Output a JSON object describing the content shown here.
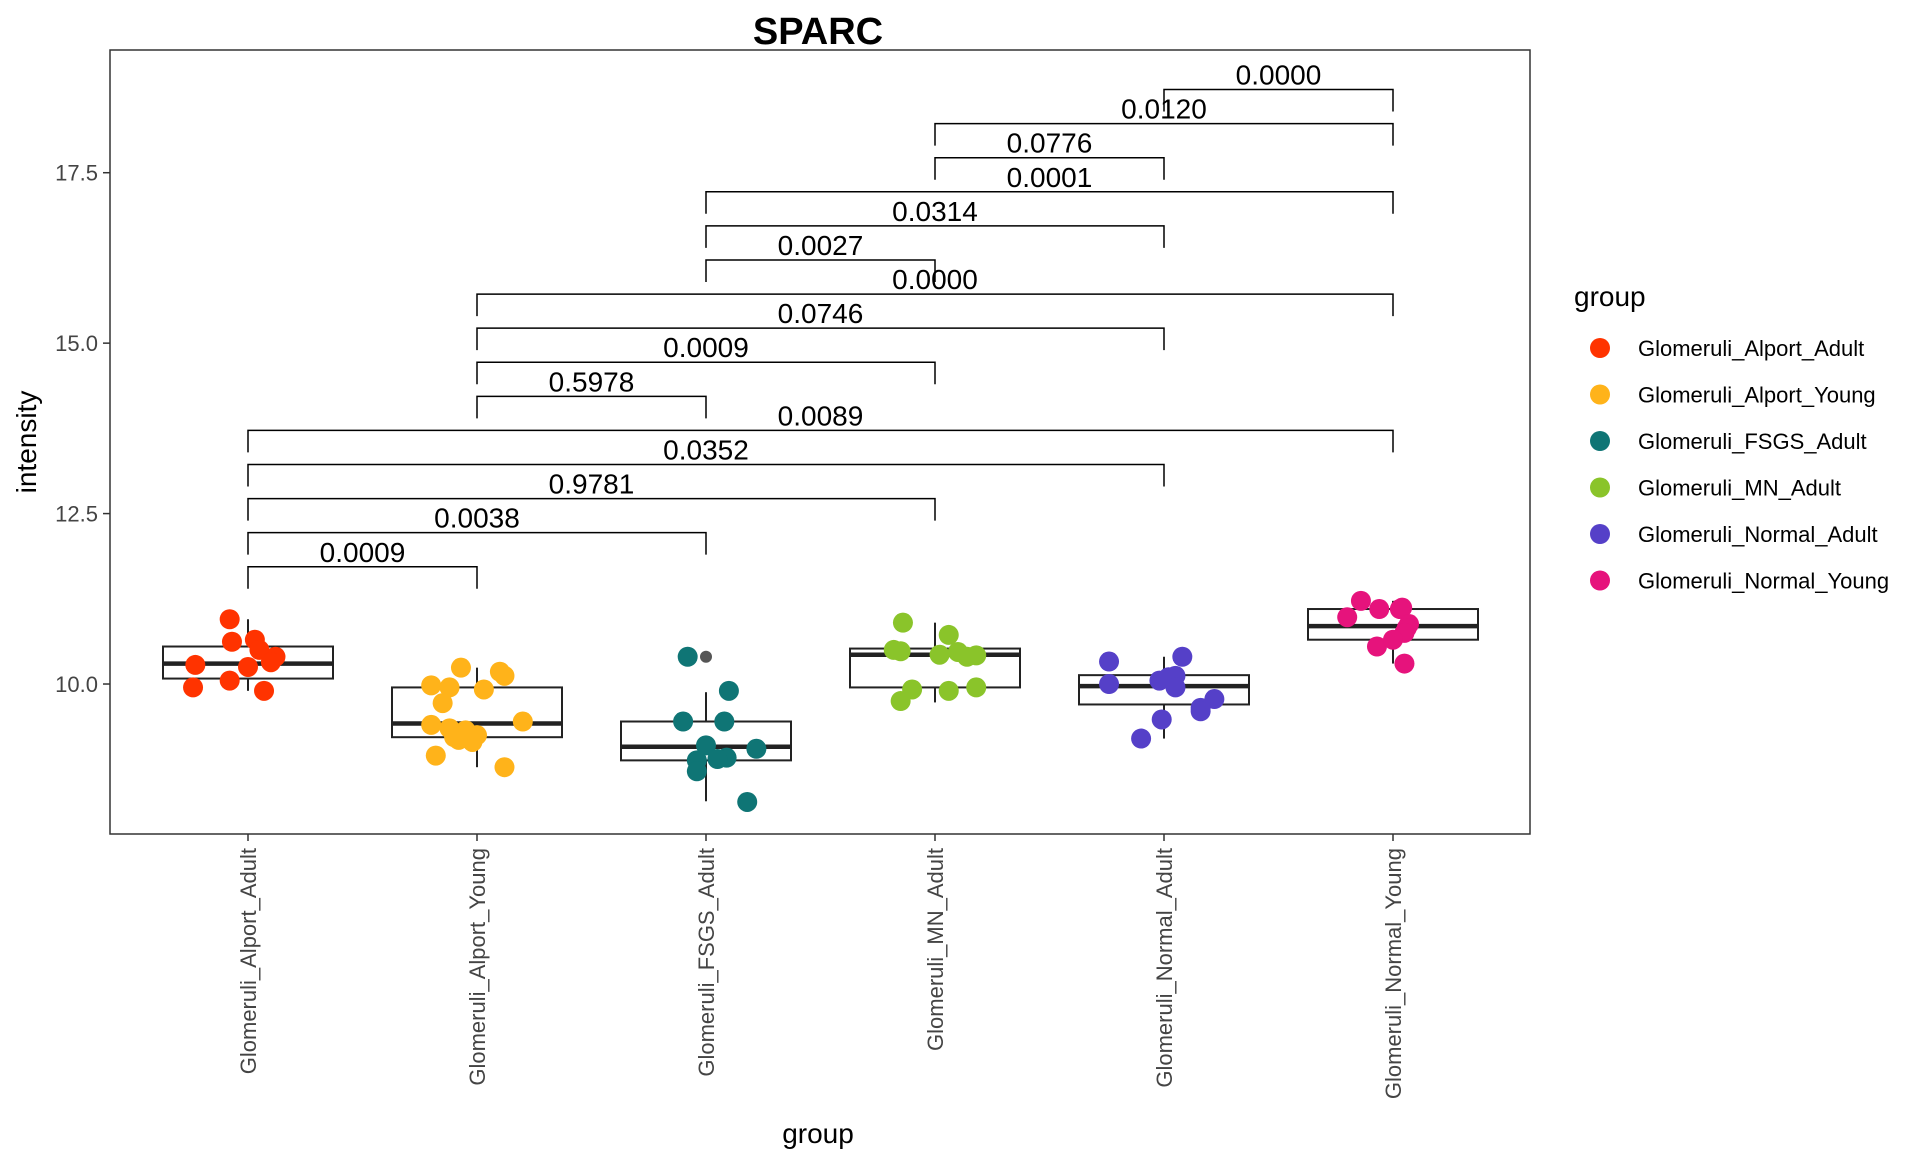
{
  "chart_data": {
    "type": "box",
    "title": "SPARC",
    "xlabel": "group",
    "ylabel": "intensity",
    "ylim": [
      7.8,
      19.3
    ],
    "yticks": [
      10.0,
      12.5,
      15.0,
      17.5
    ],
    "ytick_labels": [
      "10.0",
      "12.5",
      "15.0",
      "17.5"
    ],
    "grid": false,
    "legend": {
      "title": "group",
      "position": "right"
    },
    "categories": [
      "Glomeruli_Alport_Adult",
      "Glomeruli_Alport_Young",
      "Glomeruli_FSGS_Adult",
      "Glomeruli_MN_Adult",
      "Glomeruli_Normal_Adult",
      "Glomeruli_Normal_Young"
    ],
    "colors": [
      "#FF3300",
      "#FFB31A",
      "#0F7575",
      "#8AC42A",
      "#5540C8",
      "#E6137C"
    ],
    "boxes": [
      {
        "q1": 10.08,
        "median": 10.3,
        "q3": 10.55,
        "whisker_low": 9.9,
        "whisker_high": 10.95,
        "outliers": []
      },
      {
        "q1": 9.22,
        "median": 9.42,
        "q3": 9.95,
        "whisker_low": 8.78,
        "whisker_high": 10.24,
        "outliers": []
      },
      {
        "q1": 8.88,
        "median": 9.08,
        "q3": 9.45,
        "whisker_low": 8.28,
        "whisker_high": 9.88,
        "outliers": [
          10.4
        ]
      },
      {
        "q1": 9.95,
        "median": 10.43,
        "q3": 10.52,
        "whisker_low": 9.73,
        "whisker_high": 10.9,
        "outliers": []
      },
      {
        "q1": 9.7,
        "median": 9.97,
        "q3": 10.13,
        "whisker_low": 9.2,
        "whisker_high": 10.4,
        "outliers": []
      },
      {
        "q1": 10.65,
        "median": 10.85,
        "q3": 11.1,
        "whisker_low": 10.3,
        "whisker_high": 11.22,
        "outliers": []
      }
    ],
    "points": [
      [
        [
          -0.08,
          10.95
        ],
        [
          0.03,
          10.65
        ],
        [
          -0.07,
          10.62
        ],
        [
          0.05,
          10.5
        ],
        [
          0.12,
          10.4
        ],
        [
          0.1,
          10.32
        ],
        [
          -0.23,
          10.28
        ],
        [
          0.0,
          10.25
        ],
        [
          -0.08,
          10.05
        ],
        [
          -0.24,
          9.95
        ],
        [
          0.07,
          9.9
        ]
      ],
      [
        [
          -0.07,
          10.24
        ],
        [
          0.1,
          10.18
        ],
        [
          0.12,
          10.12
        ],
        [
          -0.2,
          9.98
        ],
        [
          -0.12,
          9.95
        ],
        [
          0.03,
          9.92
        ],
        [
          -0.15,
          9.72
        ],
        [
          0.2,
          9.45
        ],
        [
          -0.2,
          9.4
        ],
        [
          -0.12,
          9.35
        ],
        [
          -0.05,
          9.32
        ],
        [
          -0.1,
          9.22
        ],
        [
          0.0,
          9.25
        ],
        [
          -0.08,
          9.18
        ],
        [
          -0.02,
          9.15
        ],
        [
          -0.18,
          8.95
        ],
        [
          0.12,
          8.78
        ]
      ],
      [
        [
          -0.08,
          10.4
        ],
        [
          0.1,
          9.9
        ],
        [
          -0.1,
          9.45
        ],
        [
          0.08,
          9.45
        ],
        [
          0.0,
          9.1
        ],
        [
          0.22,
          9.05
        ],
        [
          0.09,
          8.92
        ],
        [
          0.05,
          8.9
        ],
        [
          -0.04,
          8.88
        ],
        [
          -0.04,
          8.72
        ],
        [
          0.18,
          8.27
        ]
      ],
      [
        [
          -0.14,
          10.9
        ],
        [
          0.06,
          10.72
        ],
        [
          -0.18,
          10.5
        ],
        [
          -0.15,
          10.48
        ],
        [
          0.1,
          10.47
        ],
        [
          0.14,
          10.4
        ],
        [
          0.02,
          10.43
        ],
        [
          0.18,
          10.42
        ],
        [
          0.18,
          9.95
        ],
        [
          -0.1,
          9.92
        ],
        [
          0.06,
          9.9
        ],
        [
          -0.15,
          9.75
        ]
      ],
      [
        [
          -0.24,
          10.33
        ],
        [
          0.08,
          10.4
        ],
        [
          0.02,
          10.1
        ],
        [
          -0.02,
          10.05
        ],
        [
          0.05,
          10.12
        ],
        [
          -0.24,
          10.0
        ],
        [
          0.05,
          9.95
        ],
        [
          0.22,
          9.78
        ],
        [
          0.16,
          9.65
        ],
        [
          0.16,
          9.6
        ],
        [
          -0.01,
          9.48
        ],
        [
          -0.1,
          9.2
        ]
      ],
      [
        [
          -0.14,
          11.22
        ],
        [
          -0.06,
          11.1
        ],
        [
          0.03,
          11.1
        ],
        [
          0.04,
          11.12
        ],
        [
          -0.2,
          10.98
        ],
        [
          0.07,
          10.88
        ],
        [
          0.06,
          10.82
        ],
        [
          0.05,
          10.75
        ],
        [
          -0.07,
          10.55
        ],
        [
          0.0,
          10.65
        ],
        [
          0.05,
          10.3
        ]
      ]
    ],
    "comparisons": [
      {
        "from": 0,
        "to": 1,
        "y": 11.72,
        "label": "0.0009"
      },
      {
        "from": 0,
        "to": 2,
        "y": 12.22,
        "label": "0.0038"
      },
      {
        "from": 0,
        "to": 3,
        "y": 12.72,
        "label": "0.9781"
      },
      {
        "from": 0,
        "to": 4,
        "y": 13.22,
        "label": "0.0352"
      },
      {
        "from": 0,
        "to": 5,
        "y": 13.72,
        "label": "0.0089"
      },
      {
        "from": 1,
        "to": 2,
        "y": 14.22,
        "label": "0.5978"
      },
      {
        "from": 1,
        "to": 3,
        "y": 14.72,
        "label": "0.0009"
      },
      {
        "from": 1,
        "to": 4,
        "y": 15.22,
        "label": "0.0746"
      },
      {
        "from": 1,
        "to": 5,
        "y": 15.72,
        "label": "0.0000"
      },
      {
        "from": 2,
        "to": 3,
        "y": 16.22,
        "label": "0.0027"
      },
      {
        "from": 2,
        "to": 4,
        "y": 16.72,
        "label": "0.0314"
      },
      {
        "from": 2,
        "to": 5,
        "y": 17.22,
        "label": "0.0001"
      },
      {
        "from": 3,
        "to": 4,
        "y": 17.72,
        "label": "0.0776"
      },
      {
        "from": 3,
        "to": 5,
        "y": 18.22,
        "label": "0.0120"
      },
      {
        "from": 4,
        "to": 5,
        "y": 18.72,
        "label": "0.0000"
      }
    ]
  }
}
